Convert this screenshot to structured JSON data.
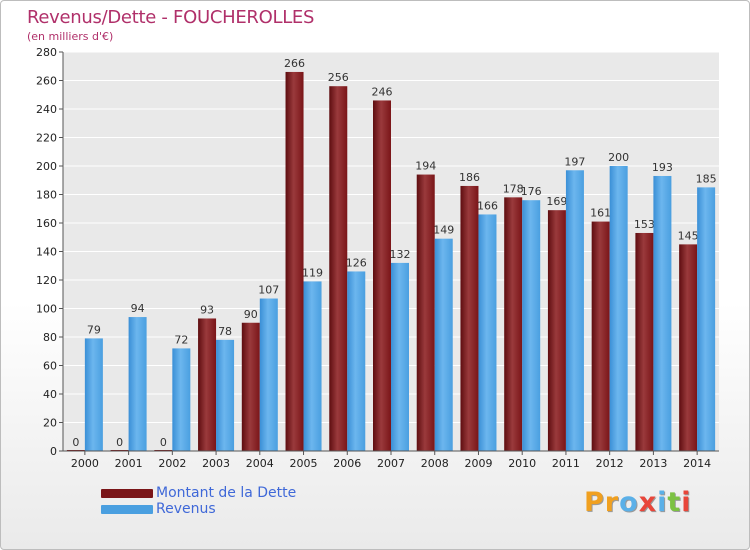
{
  "header": {
    "title": "Revenus/Dette - FOUCHEROLLES",
    "subtitle": "(en milliers d'€)"
  },
  "chart_data": {
    "type": "bar",
    "title": "Revenus/Dette - FOUCHEROLLES",
    "subtitle": "(en milliers d'€)",
    "xlabel": "",
    "ylabel": "",
    "ylim": [
      0,
      280
    ],
    "yticks": [
      0,
      20,
      40,
      60,
      80,
      100,
      120,
      140,
      160,
      180,
      200,
      220,
      240,
      260,
      280
    ],
    "grid": true,
    "legend_position": "bottom-left",
    "categories": [
      "2000",
      "2001",
      "2002",
      "2003",
      "2004",
      "2005",
      "2006",
      "2007",
      "2008",
      "2009",
      "2010",
      "2011",
      "2012",
      "2013",
      "2014"
    ],
    "series": [
      {
        "name": "Montant de la Dette",
        "color": "#7a1518",
        "values": [
          0,
          0,
          0,
          93,
          90,
          266,
          256,
          246,
          194,
          186,
          178,
          169,
          161,
          153,
          145
        ],
        "labels": [
          "0",
          "0",
          "0",
          "93",
          "90",
          "266",
          "256",
          "246",
          "194",
          "186",
          "178",
          "169",
          "161",
          "153",
          "145"
        ]
      },
      {
        "name": "Revenus",
        "color": "#4a9fe0",
        "values": [
          79,
          94,
          72,
          78,
          107,
          119,
          126,
          132,
          149,
          166,
          176,
          197,
          200,
          193,
          185
        ],
        "labels": [
          "79",
          "94",
          "72",
          "78",
          "107",
          "119",
          "126",
          "132",
          "149",
          "166",
          "176",
          "197",
          "200",
          "193",
          "185"
        ]
      }
    ]
  },
  "legend": {
    "items": [
      {
        "label": "Montant de la Dette",
        "color": "#7a1518"
      },
      {
        "label": "Revenus",
        "color": "#4a9fe0"
      }
    ]
  },
  "brand": {
    "letters": [
      "P",
      "r",
      "o",
      "x",
      "i",
      "t",
      "i"
    ],
    "colors": [
      "#f0a020",
      "#f0a020",
      "#5bb0e8",
      "#e8463a",
      "#5bb0e8",
      "#7cc242",
      "#e8463a"
    ]
  }
}
